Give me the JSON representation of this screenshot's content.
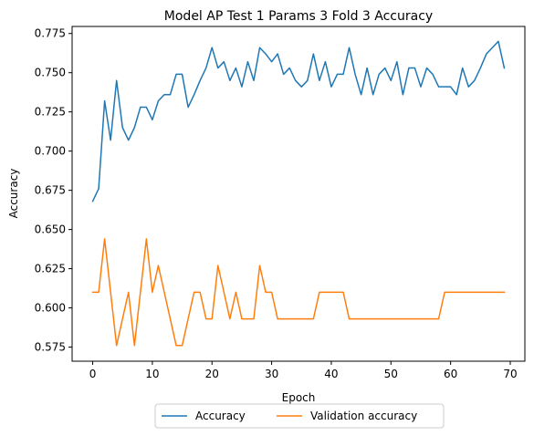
{
  "chart_data": {
    "type": "line",
    "title": "Model AP Test 1 Params 3 Fold 3 Accuracy",
    "xlabel": "Epoch",
    "ylabel": "Accuracy",
    "xlim": [
      -3.45,
      72.45
    ],
    "ylim": [
      0.566,
      0.7795
    ],
    "xticks": [
      0,
      10,
      20,
      30,
      40,
      50,
      60,
      70
    ],
    "yticks": [
      0.575,
      0.6,
      0.625,
      0.65,
      0.675,
      0.7,
      0.725,
      0.75,
      0.775
    ],
    "ytick_labels": [
      "0.575",
      "0.600",
      "0.625",
      "0.650",
      "0.675",
      "0.700",
      "0.725",
      "0.750",
      "0.775"
    ],
    "grid": false,
    "legend_position": "bottom-center outside",
    "x": [
      0,
      1,
      2,
      3,
      4,
      5,
      6,
      7,
      8,
      9,
      10,
      11,
      12,
      13,
      14,
      15,
      16,
      17,
      18,
      19,
      20,
      21,
      22,
      23,
      24,
      25,
      26,
      27,
      28,
      29,
      30,
      31,
      32,
      33,
      34,
      35,
      36,
      37,
      38,
      39,
      40,
      41,
      42,
      43,
      44,
      45,
      46,
      47,
      48,
      49,
      50,
      51,
      52,
      53,
      54,
      55,
      56,
      57,
      58,
      59,
      60,
      61,
      62,
      63,
      64,
      65,
      66,
      67,
      68,
      69
    ],
    "series": [
      {
        "name": "Accuracy",
        "color": "#1f77b4",
        "values": [
          0.668,
          0.676,
          0.732,
          0.707,
          0.745,
          0.715,
          0.707,
          0.715,
          0.728,
          0.728,
          0.72,
          0.732,
          0.736,
          0.736,
          0.749,
          0.749,
          0.728,
          0.736,
          0.745,
          0.753,
          0.766,
          0.753,
          0.757,
          0.745,
          0.753,
          0.741,
          0.757,
          0.745,
          0.766,
          0.762,
          0.757,
          0.762,
          0.749,
          0.753,
          0.745,
          0.741,
          0.745,
          0.762,
          0.745,
          0.757,
          0.741,
          0.749,
          0.749,
          0.766,
          0.749,
          0.736,
          0.753,
          0.736,
          0.749,
          0.753,
          0.745,
          0.757,
          0.736,
          0.753,
          0.753,
          0.741,
          0.753,
          0.749,
          0.741,
          0.741,
          0.741,
          0.736,
          0.753,
          0.741,
          0.745,
          0.753,
          0.762,
          0.766,
          0.77,
          0.753
        ]
      },
      {
        "name": "Validation accuracy",
        "color": "#ff7f0e",
        "values": [
          0.61,
          0.61,
          0.644,
          0.61,
          0.576,
          0.593,
          0.61,
          0.576,
          0.61,
          0.644,
          0.61,
          0.627,
          0.61,
          0.593,
          0.576,
          0.576,
          0.593,
          0.61,
          0.61,
          0.593,
          0.593,
          0.627,
          0.61,
          0.593,
          0.61,
          0.593,
          0.593,
          0.593,
          0.627,
          0.61,
          0.61,
          0.593,
          0.593,
          0.593,
          0.593,
          0.593,
          0.593,
          0.593,
          0.61,
          0.61,
          0.61,
          0.61,
          0.61,
          0.593,
          0.593,
          0.593,
          0.593,
          0.593,
          0.593,
          0.593,
          0.593,
          0.593,
          0.593,
          0.593,
          0.593,
          0.593,
          0.593,
          0.593,
          0.593,
          0.61,
          0.61,
          0.61,
          0.61,
          0.61,
          0.61,
          0.61,
          0.61,
          0.61,
          0.61,
          0.61
        ]
      }
    ]
  }
}
